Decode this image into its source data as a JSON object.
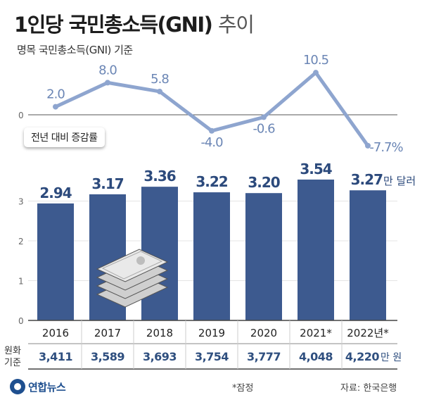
{
  "title": "1인당 국민총소득(GNI)",
  "title_suffix": "추이",
  "subtitle": "명목 국민총소득(GNI) 기준",
  "line_legend": "전년 대비 증감률",
  "bar_unit": "만 달러",
  "krw_label_line1": "원화",
  "krw_label_line2": "기준",
  "krw_unit": "만 원",
  "footnote": "*잠정",
  "source": "자료: 한국은행",
  "logo_text": "연합뉴스",
  "colors": {
    "bar": "#3d5a8f",
    "bar_label": "#2c4a7c",
    "line": "#8ea5cf",
    "growth_label": "#6b86b5",
    "krw_text": "#2f4f7f"
  },
  "chart_data": {
    "type": "bar",
    "categories": [
      "2016",
      "2017",
      "2018",
      "2019",
      "2020",
      "2021*",
      "2022년*"
    ],
    "series": [
      {
        "values": [
          2.94,
          3.17,
          3.36,
          3.22,
          3.2,
          3.54,
          3.27
        ],
        "labels": [
          "2.94",
          "3.17",
          "3.36",
          "3.22",
          "3.20",
          "3.54",
          "3.27"
        ]
      }
    ],
    "ylim": [
      0,
      3.54
    ],
    "yticks": [
      "0",
      "1",
      "2",
      "3"
    ],
    "growth_rate": {
      "type": "line",
      "values": [
        2.0,
        8.0,
        5.8,
        -4.0,
        -0.6,
        10.5,
        -7.7
      ],
      "labels": [
        "2.0",
        "8.0",
        "5.8",
        "-4.0",
        "-0.6",
        "10.5",
        "-7.7%"
      ],
      "zero_label": "0"
    },
    "krw_values": [
      "3,411",
      "3,589",
      "3,693",
      "3,754",
      "3,777",
      "4,048",
      "4,220"
    ]
  }
}
